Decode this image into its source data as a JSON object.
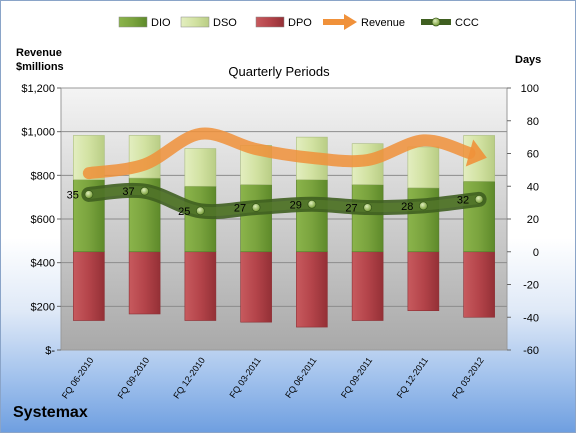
{
  "chart_data": {
    "type": "bar",
    "title": "Quarterly Periods",
    "left_axis_label_line1": "Revenue",
    "left_axis_label_line2": "$millions",
    "right_axis_label": "Days",
    "company": "Systemax",
    "categories": [
      "FQ 06-2010",
      "FQ 09-2010",
      "FQ 12-2010",
      "FQ 03-2011",
      "FQ 06-2011",
      "FQ 09-2011",
      "FQ 12-2011",
      "FQ 03-2012"
    ],
    "left_axis": {
      "min": 0,
      "max": 1200,
      "step": 200,
      "tick_labels": [
        "$-",
        "$200",
        "$400",
        "$600",
        "$800",
        "$1,000",
        "$1,200"
      ]
    },
    "right_axis": {
      "min": -60,
      "max": 100,
      "step": 20,
      "tick_labels": [
        "-60",
        "-40",
        "-20",
        "0",
        "20",
        "40",
        "60",
        "80",
        "100"
      ]
    },
    "series": [
      {
        "name": "DIO",
        "unit": "days",
        "color": "#77a13c",
        "values": [
          44,
          45,
          40,
          41,
          44,
          41,
          39,
          43
        ]
      },
      {
        "name": "DSO",
        "unit": "days",
        "color": "#d4e3a6",
        "values": [
          27,
          26,
          23,
          24,
          26,
          25,
          25,
          28
        ]
      },
      {
        "name": "DPO",
        "unit": "days",
        "color": "#b9454a",
        "values": [
          -42,
          -38,
          -42,
          -43,
          -46,
          -42,
          -36,
          -40
        ]
      },
      {
        "name": "Revenue",
        "unit": "$millions",
        "color": "#f0913a",
        "values": [
          810,
          850,
          990,
          920,
          880,
          870,
          960,
          890
        ]
      },
      {
        "name": "CCC",
        "unit": "days",
        "color": "#4a6e22",
        "values": [
          35,
          37,
          25,
          27,
          29,
          27,
          28,
          32
        ]
      }
    ],
    "ccc_labels": [
      "35",
      "37",
      "25",
      "27",
      "29",
      "27",
      "28",
      "32"
    ],
    "legend": [
      "DIO",
      "DSO",
      "DPO",
      "Revenue",
      "CCC"
    ],
    "legend_position": "top",
    "grid": true
  }
}
